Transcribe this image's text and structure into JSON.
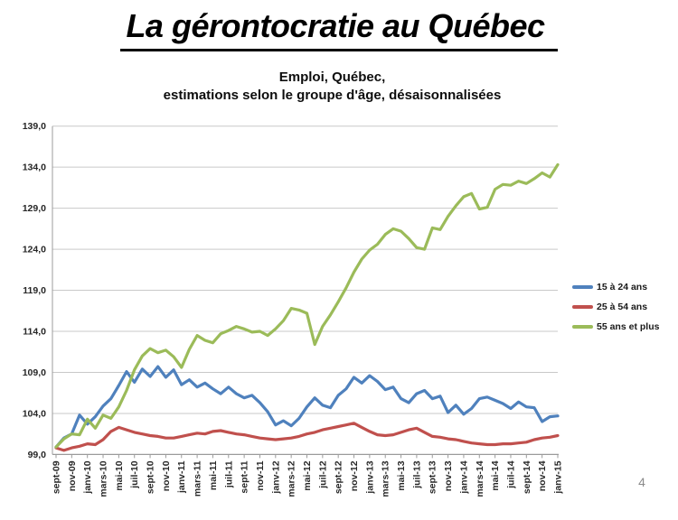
{
  "slide": {
    "title": "La gérontocratie au Québec",
    "page_number": "4"
  },
  "chart": {
    "subtitle_line1": "Emploi, Québec,",
    "subtitle_line2": "estimations selon le groupe d'âge, désaisonnalisées",
    "colors": {
      "gridline": "#c9c9c9",
      "axis": "#9b9b9b",
      "tick_text": "#262626",
      "series_blue": "#4F81BD",
      "series_red": "#C0504D",
      "series_green": "#9BBB59"
    }
  },
  "chart_data": {
    "type": "line",
    "title": "Emploi, Québec, estimations selon le groupe d'âge, désaisonnalisées",
    "ylim": [
      99,
      139
    ],
    "ytick_step": 5,
    "ytick_labels": [
      "99,0",
      "104,0",
      "109,0",
      "114,0",
      "119,0",
      "124,0",
      "129,0",
      "134,0",
      "139,0"
    ],
    "x_tick_labels": [
      "sept-09",
      "nov-09",
      "janv-10",
      "mars-10",
      "mai-10",
      "juil-10",
      "sept-10",
      "nov-10",
      "janv-11",
      "mars-11",
      "mai-11",
      "juil-11",
      "sept-11",
      "nov-11",
      "janv-12",
      "mars-12",
      "mai-12",
      "juil-12",
      "sept-12",
      "nov-12",
      "janv-13",
      "mars-13",
      "mai-13",
      "juil-13",
      "sept-13",
      "nov-13",
      "janv-14",
      "mars-14",
      "mai-14",
      "juil-14",
      "sept-14",
      "nov-14",
      "janv-15"
    ],
    "x_tick_every_n_points": 2,
    "grid": true,
    "legend_position": "right",
    "series": [
      {
        "name": "15 à 24 ans",
        "color": "#4F81BD",
        "values": [
          99.9,
          101.0,
          101.5,
          103.8,
          102.7,
          103.6,
          104.9,
          105.8,
          107.4,
          109.1,
          107.8,
          109.4,
          108.5,
          109.7,
          108.4,
          109.3,
          107.5,
          108.1,
          107.2,
          107.7,
          107.0,
          106.4,
          107.2,
          106.4,
          105.9,
          106.2,
          105.3,
          104.2,
          102.6,
          103.1,
          102.5,
          103.4,
          104.8,
          105.9,
          105.0,
          104.7,
          106.2,
          107.0,
          108.4,
          107.7,
          108.6,
          107.9,
          106.9,
          107.2,
          105.8,
          105.3,
          106.4,
          106.8,
          105.8,
          106.1,
          104.1,
          105.0,
          103.9,
          104.6,
          105.8,
          106.0,
          105.6,
          105.2,
          104.6,
          105.4,
          104.8,
          104.7,
          103.0,
          103.6,
          103.7
        ]
      },
      {
        "name": "25 à 54 ans",
        "color": "#C0504D",
        "values": [
          99.8,
          99.5,
          99.8,
          100.0,
          100.3,
          100.2,
          100.8,
          101.8,
          102.3,
          102.0,
          101.7,
          101.5,
          101.3,
          101.2,
          101.0,
          101.0,
          101.2,
          101.4,
          101.6,
          101.5,
          101.8,
          101.9,
          101.7,
          101.5,
          101.4,
          101.2,
          101.0,
          100.9,
          100.8,
          100.9,
          101.0,
          101.2,
          101.5,
          101.7,
          102.0,
          102.2,
          102.4,
          102.6,
          102.8,
          102.3,
          101.8,
          101.4,
          101.3,
          101.4,
          101.7,
          102.0,
          102.2,
          101.7,
          101.2,
          101.1,
          100.9,
          100.8,
          100.6,
          100.4,
          100.3,
          100.2,
          100.2,
          100.3,
          100.3,
          100.4,
          100.5,
          100.8,
          101.0,
          101.1,
          101.3
        ]
      },
      {
        "name": "55 ans et plus",
        "color": "#9BBB59",
        "values": [
          99.9,
          100.9,
          101.5,
          101.4,
          103.3,
          102.2,
          103.8,
          103.4,
          104.8,
          106.8,
          109.3,
          111.0,
          111.9,
          111.4,
          111.7,
          110.9,
          109.6,
          111.8,
          113.5,
          112.9,
          112.6,
          113.7,
          114.1,
          114.6,
          114.3,
          113.9,
          114.0,
          113.5,
          114.3,
          115.3,
          116.8,
          116.6,
          116.2,
          112.4,
          114.6,
          116.0,
          117.6,
          119.3,
          121.2,
          122.8,
          123.9,
          124.6,
          125.8,
          126.5,
          126.2,
          125.3,
          124.2,
          124.0,
          126.6,
          126.4,
          128.0,
          129.3,
          130.4,
          130.8,
          128.9,
          129.1,
          131.3,
          131.9,
          131.8,
          132.3,
          132.0,
          132.6,
          133.3,
          132.8,
          134.3
        ]
      }
    ]
  }
}
